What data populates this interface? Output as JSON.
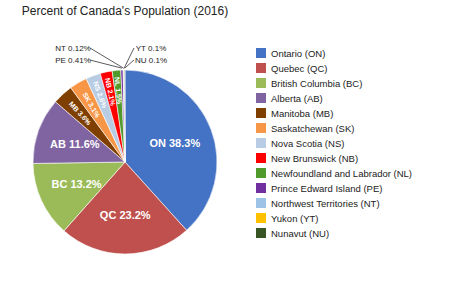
{
  "chart_data": {
    "type": "pie",
    "title": "Percent of Canada's Population (2016)",
    "categories": [
      "Ontario (ON)",
      "Quebec (QC)",
      "British Columbia (BC)",
      "Alberta (AB)",
      "Manitoba (MB)",
      "Saskatchewan (SK)",
      "Nova Scotia (NS)",
      "New Brunswick (NB)",
      "Newfoundland and Labrador (NL)",
      "Prince Edward Island (PE)",
      "Northwest Territories (NT)",
      "Yukon (YT)",
      "Nunavut (NU)"
    ],
    "values": [
      38.3,
      23.2,
      13.2,
      11.6,
      3.6,
      3.1,
      2.6,
      2.1,
      1.5,
      0.41,
      0.12,
      0.1,
      0.1
    ],
    "value_labels": [
      "ON 38.3%",
      "QC 23.2%",
      "BC 13.2%",
      "AB 11.6%",
      "MB 3.6%",
      "SK 3.1%",
      "NS 2.6%",
      "NB 2.1%",
      "NL 1.5%",
      "PE 0.41%",
      "NT 0.12%",
      "YT 0.1%",
      "NU 0.1%"
    ],
    "colors": [
      "#4472C4",
      "#C0504D",
      "#9BBB59",
      "#8064A2",
      "#7F3F00",
      "#F79646",
      "#B8CCE4",
      "#FF0000",
      "#4F9A2B",
      "#7030A0",
      "#9DC3E6",
      "#FFC000",
      "#375623"
    ],
    "data_labels": true,
    "legend": "right"
  }
}
